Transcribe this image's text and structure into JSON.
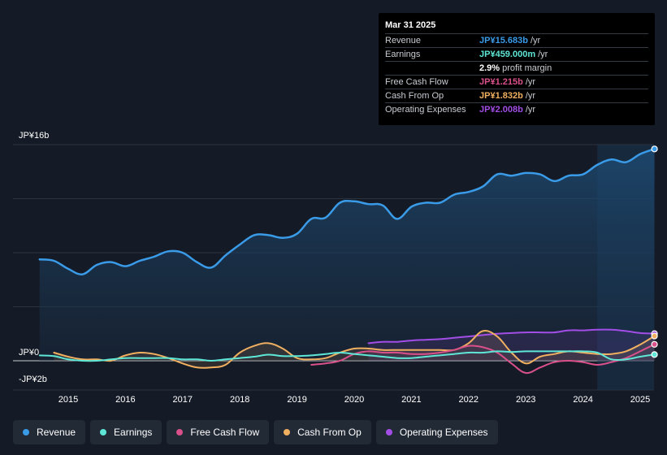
{
  "tooltip": {
    "date": "Mar 31 2025",
    "rows": [
      {
        "label": "Revenue",
        "value": "JP¥15.683b",
        "unit": "/yr",
        "color": "#3a9be8"
      },
      {
        "label": "Earnings",
        "value": "JP¥459.000m",
        "unit": "/yr",
        "color": "#5ee7d6"
      },
      {
        "label": "",
        "value": "2.9%",
        "unit": "profit margin",
        "color": "#ffffff"
      },
      {
        "label": "Free Cash Flow",
        "value": "JP¥1.215b",
        "unit": "/yr",
        "color": "#d9508a"
      },
      {
        "label": "Cash From Op",
        "value": "JP¥1.832b",
        "unit": "/yr",
        "color": "#f0b060"
      },
      {
        "label": "Operating Expenses",
        "value": "JP¥2.008b",
        "unit": "/yr",
        "color": "#a24ee6"
      }
    ]
  },
  "legend": [
    {
      "label": "Revenue",
      "color": "#3a9be8"
    },
    {
      "label": "Earnings",
      "color": "#5ee7d6"
    },
    {
      "label": "Free Cash Flow",
      "color": "#d9508a"
    },
    {
      "label": "Cash From Op",
      "color": "#f0b060"
    },
    {
      "label": "Operating Expenses",
      "color": "#a24ee6"
    }
  ],
  "chart_data": {
    "type": "line",
    "title": "",
    "y_labels": {
      "top": "JP¥16b",
      "zero": "JP¥0",
      "bottom": "-JP¥2b"
    },
    "ylim": [
      -2,
      16
    ],
    "xlim": [
      2014.5,
      2025.25
    ],
    "x_ticks": [
      "2015",
      "2016",
      "2017",
      "2018",
      "2019",
      "2020",
      "2021",
      "2022",
      "2023",
      "2024",
      "2025"
    ],
    "x_tick_values": [
      2015,
      2016,
      2017,
      2018,
      2019,
      2020,
      2021,
      2022,
      2023,
      2024,
      2025
    ],
    "forecast_start": 2024.25,
    "series": [
      {
        "name": "Revenue",
        "color": "#3a9be8",
        "fill": true,
        "points": [
          [
            2014.5,
            7.5
          ],
          [
            2014.75,
            7.4
          ],
          [
            2015,
            6.8
          ],
          [
            2015.25,
            6.4
          ],
          [
            2015.5,
            7.1
          ],
          [
            2015.75,
            7.3
          ],
          [
            2016,
            7.0
          ],
          [
            2016.25,
            7.4
          ],
          [
            2016.5,
            7.7
          ],
          [
            2016.75,
            8.1
          ],
          [
            2017,
            8.0
          ],
          [
            2017.25,
            7.3
          ],
          [
            2017.5,
            6.9
          ],
          [
            2017.75,
            7.8
          ],
          [
            2018,
            8.6
          ],
          [
            2018.25,
            9.3
          ],
          [
            2018.5,
            9.3
          ],
          [
            2018.75,
            9.1
          ],
          [
            2019,
            9.4
          ],
          [
            2019.25,
            10.5
          ],
          [
            2019.5,
            10.6
          ],
          [
            2019.75,
            11.7
          ],
          [
            2020,
            11.8
          ],
          [
            2020.25,
            11.6
          ],
          [
            2020.5,
            11.5
          ],
          [
            2020.75,
            10.5
          ],
          [
            2021,
            11.4
          ],
          [
            2021.25,
            11.7
          ],
          [
            2021.5,
            11.7
          ],
          [
            2021.75,
            12.3
          ],
          [
            2022,
            12.5
          ],
          [
            2022.25,
            12.9
          ],
          [
            2022.5,
            13.8
          ],
          [
            2022.75,
            13.7
          ],
          [
            2023,
            13.9
          ],
          [
            2023.25,
            13.8
          ],
          [
            2023.5,
            13.3
          ],
          [
            2023.75,
            13.7
          ],
          [
            2024,
            13.8
          ],
          [
            2024.25,
            14.5
          ],
          [
            2024.5,
            14.9
          ],
          [
            2024.75,
            14.7
          ],
          [
            2025,
            15.3
          ],
          [
            2025.25,
            15.68
          ]
        ]
      },
      {
        "name": "Earnings",
        "color": "#5ee7d6",
        "fill": false,
        "points": [
          [
            2014.5,
            0.4
          ],
          [
            2014.75,
            0.35
          ],
          [
            2015,
            0.1
          ],
          [
            2015.25,
            0.0
          ],
          [
            2015.5,
            0.0
          ],
          [
            2015.75,
            0.1
          ],
          [
            2016,
            0.2
          ],
          [
            2016.25,
            0.2
          ],
          [
            2016.5,
            0.2
          ],
          [
            2016.75,
            0.2
          ],
          [
            2017,
            0.1
          ],
          [
            2017.25,
            0.1
          ],
          [
            2017.5,
            0.0
          ],
          [
            2017.75,
            0.1
          ],
          [
            2018,
            0.2
          ],
          [
            2018.25,
            0.3
          ],
          [
            2018.5,
            0.45
          ],
          [
            2018.75,
            0.35
          ],
          [
            2019,
            0.35
          ],
          [
            2019.25,
            0.4
          ],
          [
            2019.5,
            0.5
          ],
          [
            2019.75,
            0.6
          ],
          [
            2020,
            0.5
          ],
          [
            2020.25,
            0.4
          ],
          [
            2020.5,
            0.3
          ],
          [
            2020.75,
            0.2
          ],
          [
            2021,
            0.2
          ],
          [
            2021.25,
            0.3
          ],
          [
            2021.5,
            0.4
          ],
          [
            2021.75,
            0.5
          ],
          [
            2022,
            0.6
          ],
          [
            2022.25,
            0.6
          ],
          [
            2022.5,
            0.7
          ],
          [
            2022.75,
            0.65
          ],
          [
            2023,
            0.7
          ],
          [
            2023.25,
            0.7
          ],
          [
            2023.5,
            0.7
          ],
          [
            2023.75,
            0.7
          ],
          [
            2024,
            0.7
          ],
          [
            2024.25,
            0.6
          ],
          [
            2024.5,
            0.1
          ],
          [
            2024.75,
            0.1
          ],
          [
            2025,
            0.3
          ],
          [
            2025.25,
            0.459
          ]
        ]
      },
      {
        "name": "Free Cash Flow",
        "color": "#d9508a",
        "fill": false,
        "points": [
          [
            2019.25,
            -0.3
          ],
          [
            2019.5,
            -0.2
          ],
          [
            2019.75,
            0.0
          ],
          [
            2020,
            0.5
          ],
          [
            2020.25,
            0.7
          ],
          [
            2020.5,
            0.6
          ],
          [
            2020.75,
            0.6
          ],
          [
            2021,
            0.5
          ],
          [
            2021.25,
            0.5
          ],
          [
            2021.5,
            0.6
          ],
          [
            2021.75,
            0.8
          ],
          [
            2022,
            1.1
          ],
          [
            2022.25,
            1.0
          ],
          [
            2022.5,
            0.6
          ],
          [
            2022.75,
            -0.2
          ],
          [
            2023,
            -0.9
          ],
          [
            2023.25,
            -0.5
          ],
          [
            2023.5,
            -0.1
          ],
          [
            2023.75,
            0.0
          ],
          [
            2024,
            -0.1
          ],
          [
            2024.25,
            -0.3
          ],
          [
            2024.5,
            -0.1
          ],
          [
            2024.75,
            0.2
          ],
          [
            2025,
            0.7
          ],
          [
            2025.25,
            1.215
          ]
        ]
      },
      {
        "name": "Cash From Op",
        "color": "#f0b060",
        "fill": false,
        "points": [
          [
            2014.75,
            0.6
          ],
          [
            2015,
            0.3
          ],
          [
            2015.25,
            0.1
          ],
          [
            2015.5,
            0.1
          ],
          [
            2015.75,
            0.0
          ],
          [
            2016,
            0.4
          ],
          [
            2016.25,
            0.6
          ],
          [
            2016.5,
            0.5
          ],
          [
            2016.75,
            0.2
          ],
          [
            2017,
            -0.2
          ],
          [
            2017.25,
            -0.5
          ],
          [
            2017.5,
            -0.5
          ],
          [
            2017.75,
            -0.3
          ],
          [
            2018,
            0.6
          ],
          [
            2018.25,
            1.1
          ],
          [
            2018.5,
            1.3
          ],
          [
            2018.75,
            0.9
          ],
          [
            2019,
            0.2
          ],
          [
            2019.25,
            0.1
          ],
          [
            2019.5,
            0.2
          ],
          [
            2019.75,
            0.6
          ],
          [
            2020,
            0.9
          ],
          [
            2020.25,
            0.9
          ],
          [
            2020.5,
            0.8
          ],
          [
            2020.75,
            0.8
          ],
          [
            2021,
            0.8
          ],
          [
            2021.25,
            0.8
          ],
          [
            2021.5,
            0.8
          ],
          [
            2021.75,
            0.8
          ],
          [
            2022,
            1.3
          ],
          [
            2022.25,
            2.2
          ],
          [
            2022.5,
            1.8
          ],
          [
            2022.75,
            0.6
          ],
          [
            2023,
            -0.2
          ],
          [
            2023.25,
            0.3
          ],
          [
            2023.5,
            0.5
          ],
          [
            2023.75,
            0.7
          ],
          [
            2024,
            0.6
          ],
          [
            2024.25,
            0.5
          ],
          [
            2024.5,
            0.5
          ],
          [
            2024.75,
            0.7
          ],
          [
            2025,
            1.2
          ],
          [
            2025.25,
            1.832
          ]
        ]
      },
      {
        "name": "Operating Expenses",
        "color": "#a24ee6",
        "fill": false,
        "points": [
          [
            2020.25,
            1.3
          ],
          [
            2020.5,
            1.4
          ],
          [
            2020.75,
            1.4
          ],
          [
            2021,
            1.5
          ],
          [
            2021.25,
            1.55
          ],
          [
            2021.5,
            1.6
          ],
          [
            2021.75,
            1.7
          ],
          [
            2022,
            1.8
          ],
          [
            2022.25,
            1.9
          ],
          [
            2022.5,
            2.0
          ],
          [
            2022.75,
            2.05
          ],
          [
            2023,
            2.1
          ],
          [
            2023.25,
            2.1
          ],
          [
            2023.5,
            2.1
          ],
          [
            2023.75,
            2.25
          ],
          [
            2024,
            2.25
          ],
          [
            2024.25,
            2.3
          ],
          [
            2024.5,
            2.3
          ],
          [
            2024.75,
            2.2
          ],
          [
            2025,
            2.05
          ],
          [
            2025.25,
            2.008
          ]
        ]
      }
    ]
  }
}
